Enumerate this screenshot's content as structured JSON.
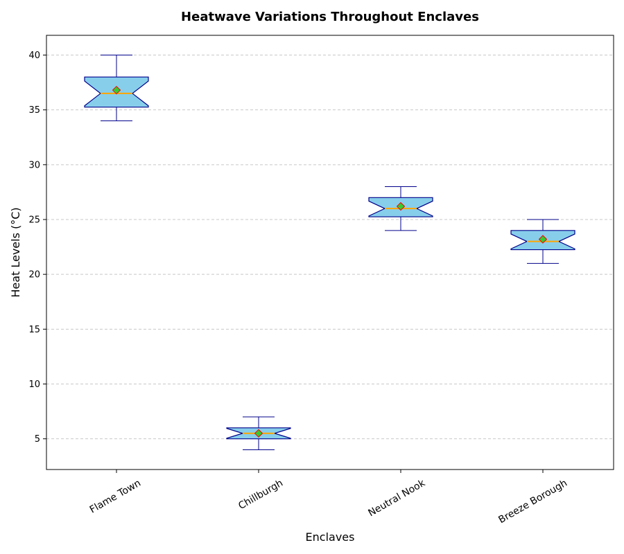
{
  "chart_data": {
    "type": "boxplot",
    "title": "Heatwave Variations Throughout Enclaves",
    "xlabel": "Enclaves",
    "ylabel": "Heat Levels (°C)",
    "ylim": [
      2.2,
      41.8
    ],
    "yticks": [
      5,
      10,
      15,
      20,
      25,
      30,
      35,
      40
    ],
    "grid": "y-dashed",
    "notched": true,
    "show_means": true,
    "categories": [
      "Flame Town",
      "Chillburgh",
      "Neutral Nook",
      "Breeze Borough"
    ],
    "boxes": [
      {
        "category": "Flame Town",
        "whisker_low": 34,
        "q1": 35.25,
        "median": 36.5,
        "q3": 38,
        "whisker_high": 40,
        "mean": 36.8
      },
      {
        "category": "Chillburgh",
        "whisker_low": 4,
        "q1": 5,
        "median": 5.5,
        "q3": 6,
        "whisker_high": 7,
        "mean": 5.5
      },
      {
        "category": "Neutral Nook",
        "whisker_low": 24,
        "q1": 25.25,
        "median": 26,
        "q3": 27,
        "whisker_high": 28,
        "mean": 26.2
      },
      {
        "category": "Breeze Borough",
        "whisker_low": 21,
        "q1": 22.25,
        "median": 23,
        "q3": 24,
        "whisker_high": 25,
        "mean": 23.2
      }
    ],
    "colors": {
      "box_fill": "#87ceeb",
      "box_edge": "#00008b",
      "median": "#ffa500",
      "mean_fill": "#32cd32",
      "mean_edge": "#ff0000",
      "grid": "#c8c8c8"
    }
  }
}
